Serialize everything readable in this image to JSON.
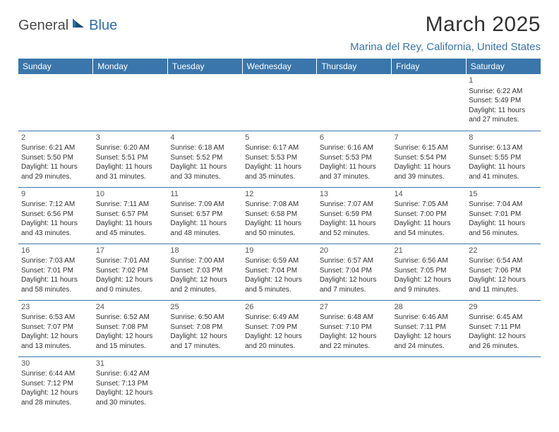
{
  "logo": {
    "part1": "General",
    "part2": "Blue"
  },
  "title": "March 2025",
  "location": "Marina del Rey, California, United States",
  "colors": {
    "header_bg": "#3a76ab",
    "header_text": "#ffffff",
    "location_text": "#3a76ab",
    "body_text": "#333333",
    "border": "#3a76ab"
  },
  "weekdays": [
    "Sunday",
    "Monday",
    "Tuesday",
    "Wednesday",
    "Thursday",
    "Friday",
    "Saturday"
  ],
  "days": [
    {
      "n": 1,
      "sr": "6:22 AM",
      "ss": "5:49 PM",
      "dh": 11,
      "dm": 27
    },
    {
      "n": 2,
      "sr": "6:21 AM",
      "ss": "5:50 PM",
      "dh": 11,
      "dm": 29
    },
    {
      "n": 3,
      "sr": "6:20 AM",
      "ss": "5:51 PM",
      "dh": 11,
      "dm": 31
    },
    {
      "n": 4,
      "sr": "6:18 AM",
      "ss": "5:52 PM",
      "dh": 11,
      "dm": 33
    },
    {
      "n": 5,
      "sr": "6:17 AM",
      "ss": "5:53 PM",
      "dh": 11,
      "dm": 35
    },
    {
      "n": 6,
      "sr": "6:16 AM",
      "ss": "5:53 PM",
      "dh": 11,
      "dm": 37
    },
    {
      "n": 7,
      "sr": "6:15 AM",
      "ss": "5:54 PM",
      "dh": 11,
      "dm": 39
    },
    {
      "n": 8,
      "sr": "6:13 AM",
      "ss": "5:55 PM",
      "dh": 11,
      "dm": 41
    },
    {
      "n": 9,
      "sr": "7:12 AM",
      "ss": "6:56 PM",
      "dh": 11,
      "dm": 43
    },
    {
      "n": 10,
      "sr": "7:11 AM",
      "ss": "6:57 PM",
      "dh": 11,
      "dm": 45
    },
    {
      "n": 11,
      "sr": "7:09 AM",
      "ss": "6:57 PM",
      "dh": 11,
      "dm": 48
    },
    {
      "n": 12,
      "sr": "7:08 AM",
      "ss": "6:58 PM",
      "dh": 11,
      "dm": 50
    },
    {
      "n": 13,
      "sr": "7:07 AM",
      "ss": "6:59 PM",
      "dh": 11,
      "dm": 52
    },
    {
      "n": 14,
      "sr": "7:05 AM",
      "ss": "7:00 PM",
      "dh": 11,
      "dm": 54
    },
    {
      "n": 15,
      "sr": "7:04 AM",
      "ss": "7:01 PM",
      "dh": 11,
      "dm": 56
    },
    {
      "n": 16,
      "sr": "7:03 AM",
      "ss": "7:01 PM",
      "dh": 11,
      "dm": 58
    },
    {
      "n": 17,
      "sr": "7:01 AM",
      "ss": "7:02 PM",
      "dh": 12,
      "dm": 0
    },
    {
      "n": 18,
      "sr": "7:00 AM",
      "ss": "7:03 PM",
      "dh": 12,
      "dm": 2
    },
    {
      "n": 19,
      "sr": "6:59 AM",
      "ss": "7:04 PM",
      "dh": 12,
      "dm": 5
    },
    {
      "n": 20,
      "sr": "6:57 AM",
      "ss": "7:04 PM",
      "dh": 12,
      "dm": 7
    },
    {
      "n": 21,
      "sr": "6:56 AM",
      "ss": "7:05 PM",
      "dh": 12,
      "dm": 9
    },
    {
      "n": 22,
      "sr": "6:54 AM",
      "ss": "7:06 PM",
      "dh": 12,
      "dm": 11
    },
    {
      "n": 23,
      "sr": "6:53 AM",
      "ss": "7:07 PM",
      "dh": 12,
      "dm": 13
    },
    {
      "n": 24,
      "sr": "6:52 AM",
      "ss": "7:08 PM",
      "dh": 12,
      "dm": 15
    },
    {
      "n": 25,
      "sr": "6:50 AM",
      "ss": "7:08 PM",
      "dh": 12,
      "dm": 17
    },
    {
      "n": 26,
      "sr": "6:49 AM",
      "ss": "7:09 PM",
      "dh": 12,
      "dm": 20
    },
    {
      "n": 27,
      "sr": "6:48 AM",
      "ss": "7:10 PM",
      "dh": 12,
      "dm": 22
    },
    {
      "n": 28,
      "sr": "6:46 AM",
      "ss": "7:11 PM",
      "dh": 12,
      "dm": 24
    },
    {
      "n": 29,
      "sr": "6:45 AM",
      "ss": "7:11 PM",
      "dh": 12,
      "dm": 26
    },
    {
      "n": 30,
      "sr": "6:44 AM",
      "ss": "7:12 PM",
      "dh": 12,
      "dm": 28
    },
    {
      "n": 31,
      "sr": "6:42 AM",
      "ss": "7:13 PM",
      "dh": 12,
      "dm": 30
    }
  ],
  "first_weekday_index": 6,
  "labels": {
    "sunrise": "Sunrise:",
    "sunset": "Sunset:",
    "daylight_prefix": "Daylight:",
    "hours_word": "hours",
    "and_word": "and",
    "minutes_word": "minutes."
  }
}
